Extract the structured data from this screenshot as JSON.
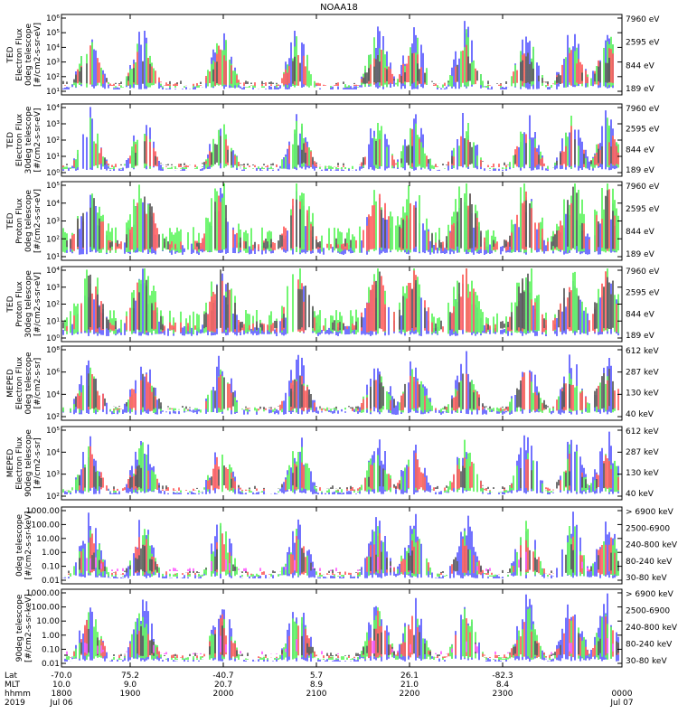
{
  "title": "NOAA18",
  "colors": {
    "blue": "#0000ff",
    "red": "#ff0000",
    "green": "#00ee00",
    "black": "#000000",
    "magenta": "#ff00ff"
  },
  "footer": {
    "row_labels": [
      "Lat",
      "MLT",
      "hhmm",
      "2019"
    ],
    "ticks": [
      {
        "lat": "-70.0",
        "mlt": "10.0",
        "hhmm": "1800",
        "date": "Jul 06"
      },
      {
        "lat": "75.2",
        "mlt": "9.0",
        "hhmm": "1900",
        "date": ""
      },
      {
        "lat": "-40.7",
        "mlt": "20.7",
        "hhmm": "2000",
        "date": ""
      },
      {
        "lat": "5.7",
        "mlt": "8.9",
        "hhmm": "2100",
        "date": ""
      },
      {
        "lat": "26.1",
        "mlt": "21.0",
        "hhmm": "2200",
        "date": ""
      },
      {
        "lat": "-82.3",
        "mlt": "8.4",
        "hhmm": "2300",
        "date": ""
      },
      {
        "lat": "",
        "mlt": "",
        "hhmm": "0000",
        "date": "Jul 07"
      }
    ]
  },
  "chart_data": [
    {
      "type": "line",
      "ylabel": [
        "TED",
        "Electron Flux",
        "0deg telescope",
        "[#/cm2-s-sr-eV]"
      ],
      "yticks": [
        "10¹",
        "10²",
        "10³",
        "10⁴",
        "10⁵",
        "10⁶"
      ],
      "legend": [
        {
          "label": "7960 eV",
          "color": "#000000"
        },
        {
          "label": "2595 eV",
          "color": "#ff0000"
        },
        {
          "label": "844 eV",
          "color": "#00ee00"
        },
        {
          "label": "189 eV",
          "color": "#0000ff"
        }
      ]
    },
    {
      "type": "line",
      "ylabel": [
        "TED",
        "Electron Flux",
        "30deg telescope",
        "[#/cm2-s-sr-eV]"
      ],
      "yticks": [
        "10⁰",
        "10¹",
        "10²",
        "10³",
        "10⁴"
      ],
      "legend": [
        {
          "label": "7960 eV",
          "color": "#000000"
        },
        {
          "label": "2595 eV",
          "color": "#ff0000"
        },
        {
          "label": "844 eV",
          "color": "#00ee00"
        },
        {
          "label": "189 eV",
          "color": "#0000ff"
        }
      ]
    },
    {
      "type": "line",
      "ylabel": [
        "TED",
        "Proton Flux",
        "0deg telescope",
        "[#/cm2-s-sr-eV]"
      ],
      "yticks": [
        "10¹",
        "10²",
        "10³",
        "10⁴",
        "10⁵"
      ],
      "legend": [
        {
          "label": "7960 eV",
          "color": "#000000"
        },
        {
          "label": "2595 eV",
          "color": "#ff0000"
        },
        {
          "label": "844 eV",
          "color": "#00ee00"
        },
        {
          "label": "189 eV",
          "color": "#0000ff"
        }
      ]
    },
    {
      "type": "line",
      "ylabel": [
        "TED",
        "Proton Flux",
        "30deg telescope",
        "[#/cm2-s-sr-eV]"
      ],
      "yticks": [
        "10⁰",
        "10¹",
        "10²",
        "10³",
        "10⁴"
      ],
      "legend": [
        {
          "label": "7960 eV",
          "color": "#000000"
        },
        {
          "label": "2595 eV",
          "color": "#ff0000"
        },
        {
          "label": "844 eV",
          "color": "#00ee00"
        },
        {
          "label": "189 eV",
          "color": "#0000ff"
        }
      ]
    },
    {
      "type": "line",
      "ylabel": [
        "MEPED",
        "Electron Flux",
        "0deg telescope",
        "[#/cm2-s-sr]"
      ],
      "yticks": [
        "10²",
        "10⁴",
        "10⁶",
        "10⁸"
      ],
      "legend": [
        {
          "label": "612 keV",
          "color": "#000000"
        },
        {
          "label": "287 keV",
          "color": "#ff0000"
        },
        {
          "label": "130 keV",
          "color": "#00ee00"
        },
        {
          "label": "40 keV",
          "color": "#0000ff"
        }
      ]
    },
    {
      "type": "line",
      "ylabel": [
        "MEPED",
        "Electron Flux",
        "90deg telescope",
        "[#/cm2-s-sr]"
      ],
      "yticks": [
        "10²",
        "10³",
        "10⁴",
        "10⁵"
      ],
      "legend": [
        {
          "label": "612 keV",
          "color": "#000000"
        },
        {
          "label": "287 keV",
          "color": "#ff0000"
        },
        {
          "label": "130 keV",
          "color": "#00ee00"
        },
        {
          "label": "40 keV",
          "color": "#0000ff"
        }
      ]
    },
    {
      "type": "line",
      "ylabel": [
        "0deg telescope",
        "[#/cm2-s-sr-keV]"
      ],
      "yticks": [
        "0.01",
        "0.10",
        "1.00",
        "10.00",
        "100.00",
        "1000.00"
      ],
      "legend": [
        {
          "label": "> 6900 keV",
          "color": "#ff00ff"
        },
        {
          "label": "2500-6900",
          "color": "#000000"
        },
        {
          "label": "240-800 keV",
          "color": "#ff0000"
        },
        {
          "label": "80-240 keV",
          "color": "#00ee00"
        },
        {
          "label": "30-80 keV",
          "color": "#0000ff"
        }
      ]
    },
    {
      "type": "line",
      "ylabel": [
        "90deg telescope",
        "[#/cm2-s-sr-keV]"
      ],
      "yticks": [
        "0.01",
        "0.10",
        "1.00",
        "10.00",
        "100.00",
        "1000.00"
      ],
      "legend": [
        {
          "label": "> 6900 keV",
          "color": "#ff00ff"
        },
        {
          "label": "2500-6900",
          "color": "#000000"
        },
        {
          "label": "240-800 keV",
          "color": "#ff0000"
        },
        {
          "label": "80-240 keV",
          "color": "#00ee00"
        },
        {
          "label": "30-80 keV",
          "color": "#0000ff"
        }
      ]
    }
  ]
}
